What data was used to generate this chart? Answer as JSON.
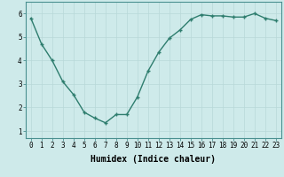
{
  "x": [
    0,
    1,
    2,
    3,
    4,
    5,
    6,
    7,
    8,
    9,
    10,
    11,
    12,
    13,
    14,
    15,
    16,
    17,
    18,
    19,
    20,
    21,
    22,
    23
  ],
  "y": [
    5.8,
    4.7,
    4.0,
    3.1,
    2.55,
    1.8,
    1.55,
    1.35,
    1.7,
    1.7,
    2.45,
    3.55,
    4.35,
    4.95,
    5.3,
    5.75,
    5.95,
    5.9,
    5.9,
    5.85,
    5.85,
    6.0,
    5.8,
    5.7
  ],
  "line_color": "#2e7d6e",
  "marker": "+",
  "marker_size": 3,
  "linewidth": 1.0,
  "xlabel": "Humidex (Indice chaleur)",
  "xlim": [
    -0.5,
    23.5
  ],
  "ylim": [
    0.7,
    6.5
  ],
  "yticks": [
    1,
    2,
    3,
    4,
    5,
    6
  ],
  "xticks": [
    0,
    1,
    2,
    3,
    4,
    5,
    6,
    7,
    8,
    9,
    10,
    11,
    12,
    13,
    14,
    15,
    16,
    17,
    18,
    19,
    20,
    21,
    22,
    23
  ],
  "bg_color": "#ceeaea",
  "grid_color": "#b8d8d8",
  "tick_fontsize": 5.5,
  "xlabel_fontsize": 7,
  "title": ""
}
